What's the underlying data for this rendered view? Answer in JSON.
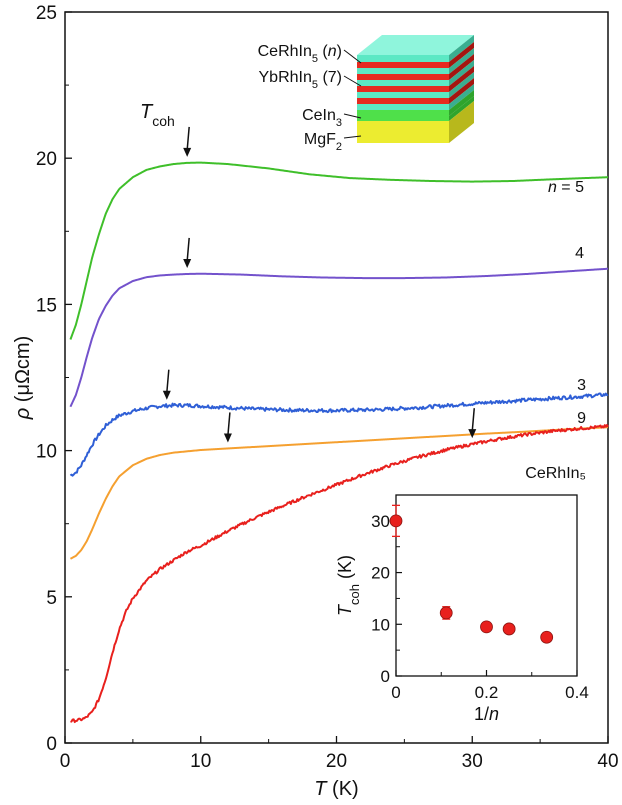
{
  "chart_data": {
    "type": "line",
    "xlabel": {
      "sym": "T",
      "unit": " (K)"
    },
    "ylabel": {
      "sym": "ρ",
      "unit": " (μΩcm)"
    },
    "xlim": [
      0,
      40
    ],
    "ylim": [
      0,
      25
    ],
    "xticks": [
      0,
      10,
      20,
      30,
      40
    ],
    "yticks": [
      0,
      5,
      10,
      15,
      20,
      25
    ],
    "series": [
      {
        "name": "n = 5",
        "label_parts": [
          "n",
          " = 5"
        ],
        "color": "#3fbf2a",
        "jitter": 0,
        "points": [
          [
            0.4,
            13.8
          ],
          [
            0.8,
            14.3
          ],
          [
            1.2,
            15.0
          ],
          [
            1.6,
            15.8
          ],
          [
            2,
            16.6
          ],
          [
            2.5,
            17.4
          ],
          [
            3,
            18.1
          ],
          [
            3.5,
            18.6
          ],
          [
            4,
            18.95
          ],
          [
            5,
            19.35
          ],
          [
            6,
            19.6
          ],
          [
            7,
            19.72
          ],
          [
            8,
            19.8
          ],
          [
            9,
            19.84
          ],
          [
            10,
            19.85
          ],
          [
            12,
            19.8
          ],
          [
            15,
            19.65
          ],
          [
            18,
            19.45
          ],
          [
            21,
            19.32
          ],
          [
            24,
            19.26
          ],
          [
            27,
            19.22
          ],
          [
            30,
            19.2
          ],
          [
            33,
            19.22
          ],
          [
            36,
            19.28
          ],
          [
            40,
            19.35
          ]
        ]
      },
      {
        "name": "4",
        "label_parts": [
          "",
          "4"
        ],
        "color": "#7352cc",
        "jitter": 0,
        "points": [
          [
            0.4,
            11.5
          ],
          [
            0.8,
            11.9
          ],
          [
            1.2,
            12.5
          ],
          [
            1.6,
            13.2
          ],
          [
            2,
            13.85
          ],
          [
            2.5,
            14.5
          ],
          [
            3,
            14.95
          ],
          [
            3.5,
            15.3
          ],
          [
            4,
            15.55
          ],
          [
            5,
            15.8
          ],
          [
            6,
            15.93
          ],
          [
            7,
            15.99
          ],
          [
            8,
            16.02
          ],
          [
            9,
            16.04
          ],
          [
            10,
            16.05
          ],
          [
            13,
            16.02
          ],
          [
            16,
            15.96
          ],
          [
            19,
            15.92
          ],
          [
            22,
            15.9
          ],
          [
            25,
            15.9
          ],
          [
            28,
            15.92
          ],
          [
            31,
            15.97
          ],
          [
            34,
            16.04
          ],
          [
            37,
            16.13
          ],
          [
            40,
            16.22
          ]
        ]
      },
      {
        "name": "3",
        "label_parts": [
          "",
          "3"
        ],
        "color": "#2f5fd6",
        "jitter": 0.06,
        "points": [
          [
            0.4,
            9.15
          ],
          [
            0.8,
            9.25
          ],
          [
            1.2,
            9.5
          ],
          [
            1.6,
            9.85
          ],
          [
            2,
            10.2
          ],
          [
            2.5,
            10.55
          ],
          [
            3,
            10.85
          ],
          [
            3.5,
            11.05
          ],
          [
            4,
            11.2
          ],
          [
            5,
            11.35
          ],
          [
            6,
            11.45
          ],
          [
            7,
            11.52
          ],
          [
            8,
            11.55
          ],
          [
            9,
            11.55
          ],
          [
            11,
            11.5
          ],
          [
            14,
            11.42
          ],
          [
            17,
            11.38
          ],
          [
            20,
            11.37
          ],
          [
            23,
            11.4
          ],
          [
            26,
            11.47
          ],
          [
            29,
            11.57
          ],
          [
            32,
            11.67
          ],
          [
            35,
            11.76
          ],
          [
            38,
            11.85
          ],
          [
            40,
            11.92
          ]
        ]
      },
      {
        "name": "9",
        "label_parts": [
          "",
          "9"
        ],
        "color": "#f5a030",
        "jitter": 0,
        "points": [
          [
            0.4,
            6.3
          ],
          [
            0.8,
            6.4
          ],
          [
            1.2,
            6.6
          ],
          [
            1.6,
            6.9
          ],
          [
            2,
            7.3
          ],
          [
            2.5,
            7.85
          ],
          [
            3,
            8.35
          ],
          [
            3.5,
            8.78
          ],
          [
            4,
            9.12
          ],
          [
            5,
            9.5
          ],
          [
            6,
            9.72
          ],
          [
            7,
            9.85
          ],
          [
            8,
            9.93
          ],
          [
            10,
            10.02
          ],
          [
            13,
            10.1
          ],
          [
            16,
            10.18
          ],
          [
            19,
            10.26
          ],
          [
            22,
            10.34
          ],
          [
            25,
            10.42
          ],
          [
            28,
            10.5
          ],
          [
            31,
            10.58
          ],
          [
            34,
            10.65
          ],
          [
            37,
            10.73
          ],
          [
            40,
            10.8
          ]
        ]
      },
      {
        "name": "CeRhIn5",
        "label_parts": [
          "",
          "CeRhIn₅"
        ],
        "color": "#e8201d",
        "jitter": 0.05,
        "points": [
          [
            0.4,
            0.75
          ],
          [
            1,
            0.78
          ],
          [
            1.5,
            0.85
          ],
          [
            2,
            1.05
          ],
          [
            2.5,
            1.5
          ],
          [
            3,
            2.2
          ],
          [
            3.5,
            3.1
          ],
          [
            4,
            3.9
          ],
          [
            4.5,
            4.5
          ],
          [
            5,
            4.95
          ],
          [
            6,
            5.55
          ],
          [
            7,
            5.95
          ],
          [
            8,
            6.25
          ],
          [
            9,
            6.55
          ],
          [
            10,
            6.75
          ],
          [
            12,
            7.25
          ],
          [
            14,
            7.7
          ],
          [
            16,
            8.1
          ],
          [
            18,
            8.48
          ],
          [
            20,
            8.83
          ],
          [
            22,
            9.18
          ],
          [
            24,
            9.5
          ],
          [
            26,
            9.78
          ],
          [
            28,
            10.02
          ],
          [
            30,
            10.22
          ],
          [
            32,
            10.4
          ],
          [
            34,
            10.55
          ],
          [
            36,
            10.67
          ],
          [
            38,
            10.76
          ],
          [
            40,
            10.83
          ]
        ]
      }
    ],
    "annotations": {
      "tcoh_label": {
        "sym": "T",
        "sub": "coh"
      },
      "arrows": [
        {
          "series": "n = 5",
          "T": 9
        },
        {
          "series": "4",
          "T": 9
        },
        {
          "series": "3",
          "T": 7.5
        },
        {
          "series": "9",
          "T": 12
        },
        {
          "series": "CeRhIn5",
          "T": 30
        }
      ]
    },
    "layers_legend": [
      {
        "text": "CeRhIn",
        "sub": "5",
        "tail": " (n)"
      },
      {
        "text": "YbRhIn",
        "sub": "5",
        "tail": " (7)"
      },
      {
        "text": "CeIn",
        "sub": "3",
        "tail": ""
      },
      {
        "text": "MgF",
        "sub": "2",
        "tail": ""
      }
    ],
    "inset": {
      "type": "scatter",
      "xlabel": {
        "text": "1/",
        "sym": "n"
      },
      "ylabel": {
        "sym": "T",
        "sub": "coh",
        "unit": " (K)"
      },
      "xlim": [
        0,
        0.4
      ],
      "ylim": [
        0,
        35
      ],
      "xticks": [
        0,
        0.2,
        0.4
      ],
      "yticks": [
        0,
        10,
        20,
        30
      ],
      "color": "#e8201d",
      "points": [
        {
          "x": 0,
          "y": 30,
          "err": 3
        },
        {
          "x": 0.111,
          "y": 12.2,
          "err": 1.2
        },
        {
          "x": 0.2,
          "y": 9.5,
          "err": 0.6
        },
        {
          "x": 0.25,
          "y": 9.1,
          "err": 0.5
        },
        {
          "x": 0.333,
          "y": 7.5,
          "err": 0.4
        }
      ]
    }
  }
}
